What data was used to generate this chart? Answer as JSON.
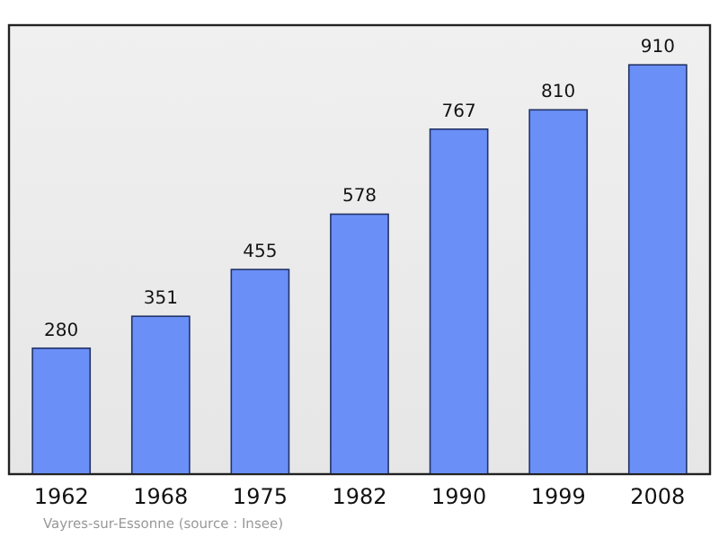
{
  "chart_data": {
    "type": "bar",
    "categories": [
      "1962",
      "1968",
      "1975",
      "1982",
      "1990",
      "1999",
      "2008"
    ],
    "values": [
      280,
      351,
      455,
      578,
      767,
      810,
      910
    ],
    "color": "#6a8ff7",
    "data_labels": true,
    "annotations": [
      "Vayres-sur-Essonne    (source : Insee)"
    ]
  }
}
